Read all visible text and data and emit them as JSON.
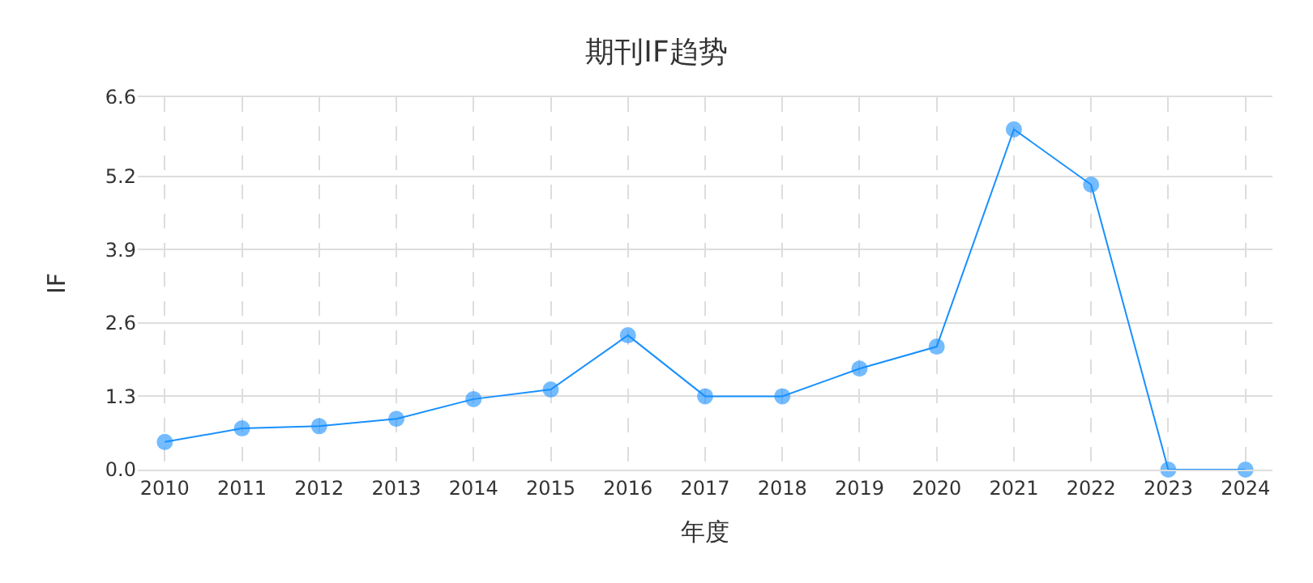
{
  "chart_data": {
    "type": "line",
    "title": "期刊IF趋势",
    "xlabel": "年度",
    "ylabel": "IF",
    "categories": [
      "2010",
      "2011",
      "2012",
      "2013",
      "2014",
      "2015",
      "2016",
      "2017",
      "2018",
      "2019",
      "2020",
      "2021",
      "2022",
      "2023",
      "2024"
    ],
    "series": [
      {
        "color": "#1890ff",
        "values": [
          0.49,
          0.73,
          0.77,
          0.9,
          1.25,
          1.42,
          2.38,
          1.3,
          1.3,
          1.79,
          2.18,
          6.03,
          5.05,
          0,
          0
        ]
      }
    ],
    "ylim": [
      0,
      6.6
    ],
    "yticks": [
      {
        "value": 0,
        "label": "0.0"
      },
      1.3,
      2.6,
      3.9,
      5.2,
      6.6
    ],
    "grid": true,
    "marker": "circle",
    "legend": false
  }
}
